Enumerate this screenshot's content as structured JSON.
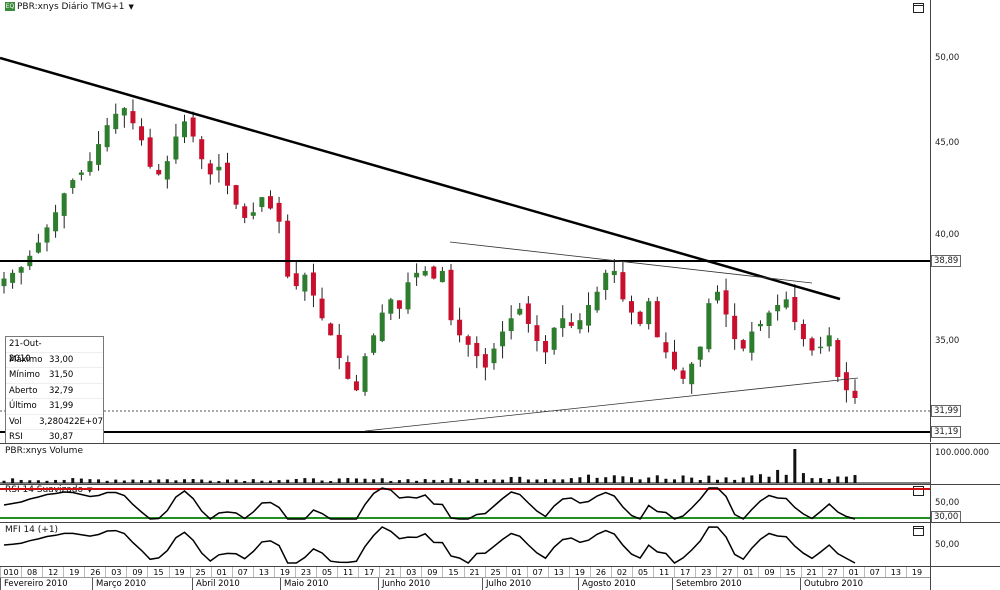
{
  "chart_title": "PBR:xnys Diário TMG+1",
  "volume_title": "PBR:xnys Volume",
  "rsi_title": "RSI 14 Suavizado",
  "mfi_title": "MFI 14 (+1)",
  "price_axis": [
    "50,00",
    "45,00",
    "40,00",
    "35,00"
  ],
  "price_markers": {
    "resistance": "38,89",
    "last": "31,99",
    "support": "31,19"
  },
  "volume_axis": "100.000.000",
  "rsi_axis": {
    "upper": "50,00",
    "lower": "30,00"
  },
  "mfi_axis": "50,00",
  "info_box": {
    "date": "21-Out-2010",
    "rows": [
      {
        "k": "Máximo",
        "v": "33,00"
      },
      {
        "k": "Mínimo",
        "v": "31,50"
      },
      {
        "k": "Aberto",
        "v": "32,79"
      },
      {
        "k": "Último",
        "v": "31,99"
      },
      {
        "k": "Vol",
        "v": "3,280422E+07"
      },
      {
        "k": "RSI",
        "v": "30,87"
      }
    ]
  },
  "x_days": [
    "010",
    "08",
    "12",
    "19",
    "26",
    "03",
    "09",
    "15",
    "19",
    "25",
    "01",
    "07",
    "13",
    "19",
    "23",
    "05",
    "11",
    "17",
    "21",
    "03",
    "09",
    "15",
    "21",
    "25",
    "01",
    "07",
    "13",
    "19",
    "26",
    "02",
    "05",
    "11",
    "17",
    "23",
    "27",
    "01",
    "09",
    "15",
    "21",
    "27",
    "01",
    "07",
    "13",
    "19"
  ],
  "x_months": [
    "Fevereiro 2010",
    "Março 2010",
    "Abril 2010",
    "Maio 2010",
    "Junho 2010",
    "Julho 2010",
    "Agosto 2010",
    "Setembro 2010",
    "Outubro 2010"
  ],
  "colors": {
    "up": "#2e7d2e",
    "down": "#c8102e",
    "trend": "#000000",
    "rsi_high": "#d01010",
    "rsi_low": "#209020"
  },
  "chart_data": {
    "type": "candlestick",
    "ylim": [
      31,
      52.5
    ],
    "levels": {
      "resistance": 38.89,
      "support": 31.19,
      "last": 31.99
    },
    "close_series": [
      38.3,
      38.6,
      38.9,
      39.5,
      40.2,
      41.0,
      41.8,
      42.8,
      43.5,
      43.9,
      44.5,
      45.4,
      46.4,
      47.0,
      47.3,
      46.5,
      45.6,
      44.2,
      43.8,
      44.5,
      45.8,
      46.6,
      45.8,
      44.6,
      43.8,
      44.2,
      43.2,
      42.2,
      41.5,
      41.8,
      42.6,
      42.0,
      41.3,
      38.4,
      37.9,
      38.5,
      37.4,
      36.2,
      35.3,
      34.1,
      33.0,
      32.4,
      34.2,
      35.3,
      36.5,
      37.2,
      36.7,
      38.1,
      38.6,
      38.7,
      38.3,
      38.7,
      36.1,
      35.3,
      34.8,
      34.2,
      33.6,
      34.6,
      35.5,
      36.2,
      36.7,
      35.9,
      35.0,
      34.4,
      35.7,
      36.2,
      35.8,
      36.1,
      36.9,
      37.6,
      38.6,
      38.7,
      37.2,
      36.5,
      35.9,
      37.1,
      35.2,
      34.4,
      33.5,
      33.0,
      33.8,
      34.7,
      37.0,
      37.6,
      36.4,
      35.1,
      34.6,
      35.5,
      35.9,
      36.5,
      36.9,
      37.2,
      36.0,
      35.1,
      34.5,
      34.7,
      35.3,
      33.1,
      32.4,
      31.99
    ]
  }
}
